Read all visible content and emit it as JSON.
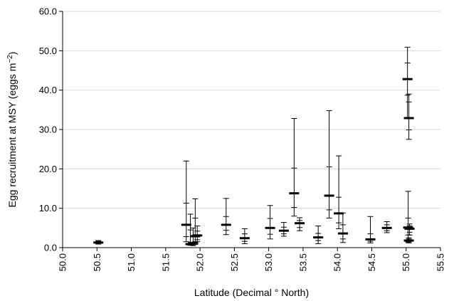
{
  "chart_data": {
    "type": "scatter",
    "xlabel": "Latitude (Decimal ° North)",
    "ylabel_main": "Egg recruitment at MSY (eggs m",
    "ylabel_sup": "−2",
    "ylabel_close": ")",
    "xlim": [
      50.0,
      55.5
    ],
    "ylim": [
      0.0,
      60.0
    ],
    "xticks": [
      "50.0",
      "50.5",
      "51.0",
      "51.5",
      "52.0",
      "52.5",
      "53.0",
      "53.5",
      "54.0",
      "54.5",
      "55.0",
      "55.5"
    ],
    "yticks": [
      "0.0",
      "10.0",
      "20.0",
      "30.0",
      "40.0",
      "50.0",
      "60.0"
    ],
    "grid": "horizontal",
    "points": [
      {
        "x": 50.52,
        "y": 1.3,
        "ci95": [
          0.9,
          1.8
        ],
        "ci50": [
          1.1,
          1.6
        ]
      },
      {
        "x": 51.8,
        "y": 5.8,
        "ci95": [
          1.5,
          22.0
        ],
        "ci50": [
          2.8,
          11.3
        ]
      },
      {
        "x": 51.86,
        "y": 0.9,
        "ci95": [
          0.6,
          8.5
        ],
        "ci50": [
          0.7,
          4.5
        ]
      },
      {
        "x": 51.9,
        "y": 1.2,
        "ci95": [
          0.5,
          5.0
        ],
        "ci50": [
          0.8,
          3.0
        ]
      },
      {
        "x": 51.93,
        "y": 2.9,
        "ci95": [
          0.8,
          12.4
        ],
        "ci50": [
          1.5,
          7.5
        ]
      },
      {
        "x": 51.96,
        "y": 3.1,
        "ci95": [
          1.5,
          5.5
        ],
        "ci50": [
          2.0,
          4.2
        ]
      },
      {
        "x": 52.38,
        "y": 5.8,
        "ci95": [
          3.3,
          12.5
        ],
        "ci50": [
          4.4,
          7.9
        ]
      },
      {
        "x": 52.65,
        "y": 2.4,
        "ci95": [
          1.0,
          4.8
        ],
        "ci50": [
          1.6,
          3.5
        ]
      },
      {
        "x": 53.02,
        "y": 5.0,
        "ci95": [
          2.2,
          10.7
        ],
        "ci50": [
          3.4,
          7.4
        ]
      },
      {
        "x": 53.22,
        "y": 4.3,
        "ci95": [
          2.9,
          6.4
        ],
        "ci50": [
          3.5,
          5.2
        ]
      },
      {
        "x": 53.37,
        "y": 13.8,
        "ci95": [
          8.0,
          32.8
        ],
        "ci50": [
          10.2,
          20.2
        ]
      },
      {
        "x": 53.45,
        "y": 6.2,
        "ci95": [
          4.3,
          7.6
        ],
        "ci50": [
          5.1,
          6.9
        ]
      },
      {
        "x": 53.72,
        "y": 2.6,
        "ci95": [
          1.0,
          5.5
        ],
        "ci50": [
          1.8,
          3.6
        ]
      },
      {
        "x": 53.88,
        "y": 13.2,
        "ci95": [
          7.5,
          34.8
        ],
        "ci50": [
          9.6,
          20.5
        ]
      },
      {
        "x": 54.02,
        "y": 8.7,
        "ci95": [
          4.8,
          23.3
        ],
        "ci50": [
          6.3,
          12.8
        ]
      },
      {
        "x": 54.08,
        "y": 3.6,
        "ci95": [
          1.3,
          8.8
        ],
        "ci50": [
          2.2,
          5.8
        ]
      },
      {
        "x": 54.48,
        "y": 2.1,
        "ci95": [
          1.2,
          7.9
        ],
        "ci50": [
          1.6,
          3.5
        ]
      },
      {
        "x": 54.72,
        "y": 5.0,
        "ci95": [
          3.8,
          6.6
        ],
        "ci50": [
          4.3,
          5.8
        ]
      },
      {
        "x": 55.02,
        "y": 42.8,
        "ci95": [
          33.0,
          50.9
        ],
        "ci50": [
          38.7,
          46.9
        ]
      },
      {
        "x": 55.04,
        "y": 32.9,
        "ci95": [
          27.5,
          39.0
        ],
        "ci50": [
          29.9,
          37.0
        ]
      },
      {
        "x": 55.03,
        "y": 5.1,
        "ci95": [
          1.4,
          14.3
        ],
        "ci50": [
          3.2,
          7.5
        ]
      },
      {
        "x": 55.05,
        "y": 4.8,
        "ci95": [
          3.2,
          6.0
        ],
        "ci50": [
          3.9,
          5.5
        ]
      },
      {
        "x": 55.04,
        "y": 1.8,
        "ci95": [
          1.2,
          2.5
        ],
        "ci50": [
          1.5,
          2.2
        ]
      }
    ]
  }
}
